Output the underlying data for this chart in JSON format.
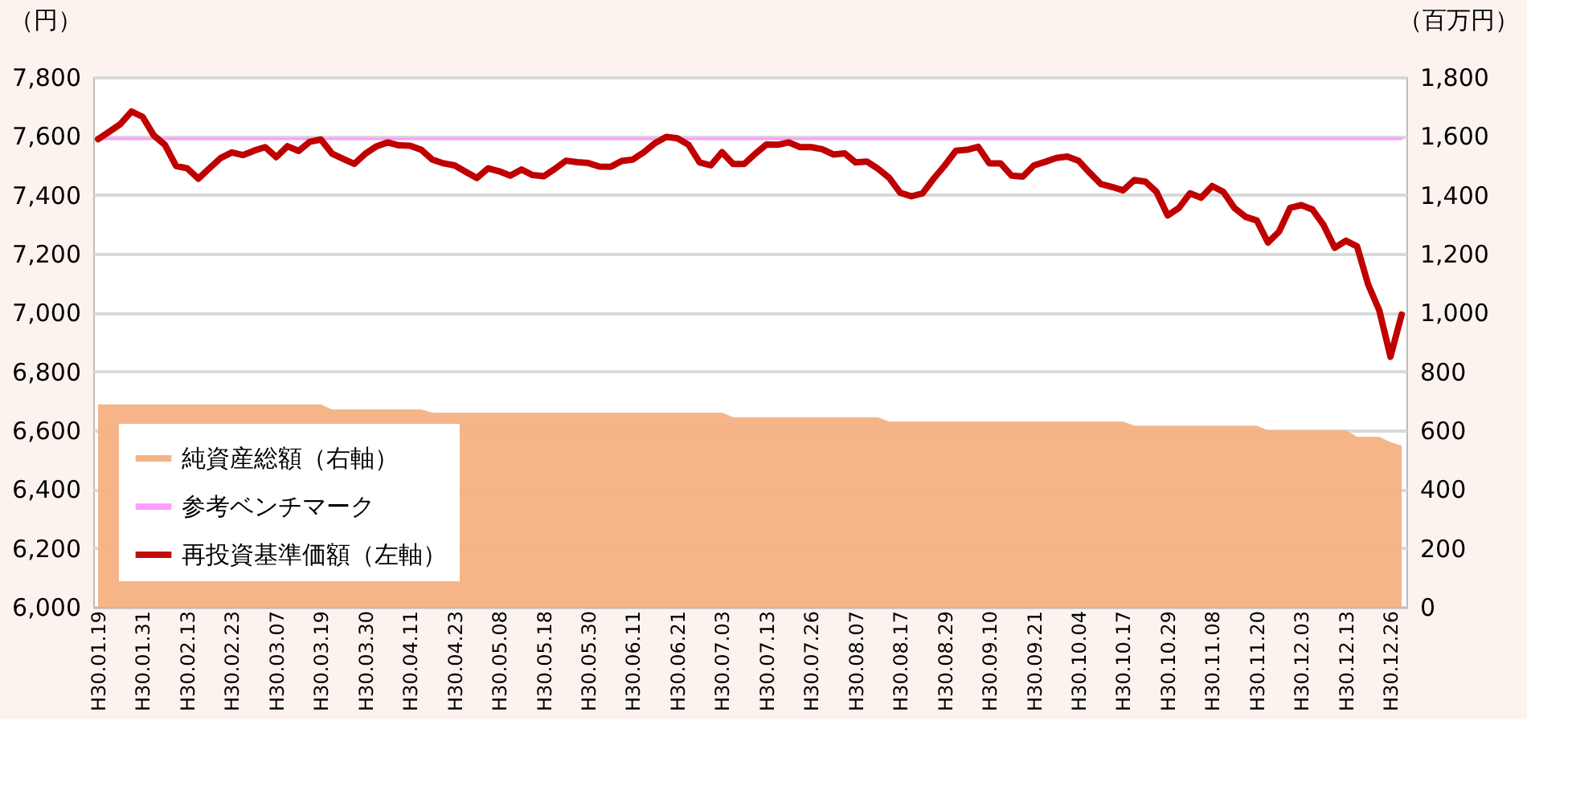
{
  "chart_data": {
    "type": "line",
    "ylabel": "（円）",
    "y2label": "（百万円）",
    "categories": [
      "H30.01.19",
      null,
      null,
      null,
      "H30.01.31",
      null,
      null,
      null,
      "H30.02.13",
      null,
      null,
      null,
      "H30.02.23",
      null,
      null,
      null,
      "H30.03.07",
      null,
      null,
      null,
      "H30.03.19",
      null,
      null,
      null,
      "H30.03.30",
      null,
      null,
      null,
      "H30.04.11",
      null,
      null,
      null,
      "H30.04.23",
      null,
      null,
      null,
      "H30.05.08",
      null,
      null,
      null,
      "H30.05.18",
      null,
      null,
      null,
      "H30.05.30",
      null,
      null,
      null,
      "H30.06.11",
      null,
      null,
      null,
      "H30.06.21",
      null,
      null,
      null,
      "H30.07.03",
      null,
      null,
      null,
      "H30.07.13",
      null,
      null,
      null,
      "H30.07.26",
      null,
      null,
      null,
      "H30.08.07",
      null,
      null,
      null,
      "H30.08.17",
      null,
      null,
      null,
      "H30.08.29",
      null,
      null,
      null,
      "H30.09.10",
      null,
      null,
      null,
      "H30.09.21",
      null,
      null,
      null,
      "H30.10.04",
      null,
      null,
      null,
      "H30.10.17",
      null,
      null,
      null,
      "H30.10.29",
      null,
      null,
      null,
      "H30.11.08",
      null,
      null,
      null,
      "H30.11.20",
      null,
      null,
      null,
      "H30.12.03",
      null,
      null,
      null,
      "H30.12.13",
      null,
      null,
      null,
      "H30.12.26",
      null
    ],
    "series": [
      {
        "name": "純資産総額（右軸）",
        "type": "area",
        "axis": "y2",
        "color": "#f4b183",
        "values": [
          688,
          688,
          688,
          688,
          688,
          688,
          688,
          688,
          688,
          688,
          688,
          688,
          688,
          688,
          688,
          688,
          688,
          688,
          688,
          688,
          688,
          671,
          671,
          671,
          671,
          671,
          671,
          671,
          671,
          671,
          660,
          660,
          660,
          660,
          660,
          660,
          660,
          660,
          660,
          660,
          660,
          660,
          660,
          660,
          660,
          660,
          660,
          660,
          660,
          660,
          660,
          660,
          660,
          660,
          660,
          660,
          660,
          644,
          644,
          644,
          644,
          644,
          644,
          644,
          644,
          644,
          644,
          644,
          644,
          644,
          644,
          630,
          630,
          630,
          630,
          630,
          630,
          630,
          630,
          630,
          630,
          630,
          630,
          630,
          630,
          630,
          630,
          630,
          630,
          630,
          630,
          630,
          630,
          616,
          616,
          616,
          616,
          616,
          616,
          616,
          616,
          616,
          616,
          616,
          616,
          600,
          600,
          600,
          600,
          600,
          600,
          600,
          600,
          578,
          578,
          578,
          560,
          548
        ]
      },
      {
        "name": "参考ベンチマーク",
        "type": "line",
        "color": "#ff99ff",
        "values": [
          7590,
          7590,
          7590,
          7590,
          7590,
          7590,
          7590,
          7590,
          7590,
          7590,
          7590,
          7590,
          7590,
          7590,
          7590,
          7590,
          7590,
          7590,
          7590,
          7590,
          7590,
          7590,
          7590,
          7590,
          7590,
          7590,
          7590,
          7590,
          7590,
          7590,
          7590,
          7590,
          7590,
          7590,
          7590,
          7590,
          7590,
          7590,
          7590,
          7590,
          7590,
          7590,
          7590,
          7590,
          7590,
          7590,
          7590,
          7590,
          7590,
          7590,
          7590,
          7590,
          7590,
          7590,
          7590,
          7590,
          7590,
          7590,
          7590,
          7590,
          7590,
          7590,
          7590,
          7590,
          7590,
          7590,
          7590,
          7590,
          7590,
          7590,
          7590,
          7590,
          7590,
          7590,
          7590,
          7590,
          7590,
          7590,
          7590,
          7590,
          7590,
          7590,
          7590,
          7590,
          7590,
          7590,
          7590,
          7590,
          7590,
          7590,
          7590,
          7590,
          7590,
          7590,
          7590,
          7590,
          7590,
          7590,
          7590,
          7590,
          7590,
          7590,
          7590,
          7590,
          7590,
          7590,
          7590,
          7590,
          7590,
          7590,
          7590,
          7590,
          7590,
          7590,
          7590,
          7590,
          7590,
          7590
        ]
      },
      {
        "name": "再投資基準価額（左軸）",
        "type": "line",
        "color": "#c00000",
        "values": [
          7589,
          7614,
          7640,
          7683,
          7665,
          7602,
          7570,
          7498,
          7490,
          7455,
          7490,
          7525,
          7544,
          7535,
          7550,
          7562,
          7528,
          7565,
          7549,
          7580,
          7588,
          7540,
          7522,
          7505,
          7540,
          7565,
          7578,
          7568,
          7567,
          7553,
          7520,
          7507,
          7500,
          7478,
          7457,
          7490,
          7480,
          7465,
          7486,
          7467,
          7463,
          7488,
          7516,
          7511,
          7508,
          7496,
          7495,
          7515,
          7520,
          7545,
          7576,
          7597,
          7592,
          7570,
          7510,
          7500,
          7545,
          7505,
          7505,
          7540,
          7571,
          7570,
          7578,
          7562,
          7562,
          7555,
          7537,
          7541,
          7510,
          7513,
          7489,
          7458,
          7407,
          7395,
          7405,
          7455,
          7500,
          7550,
          7553,
          7563,
          7507,
          7507,
          7465,
          7462,
          7500,
          7512,
          7525,
          7530,
          7516,
          7475,
          7437,
          7427,
          7415,
          7450,
          7445,
          7410,
          7330,
          7355,
          7405,
          7390,
          7430,
          7410,
          7355,
          7325,
          7313,
          7238,
          7275,
          7356,
          7365,
          7350,
          7297,
          7220,
          7244,
          7225,
          7095,
          7007,
          6850,
          6993
        ]
      }
    ],
    "ylim": [
      6000,
      7800
    ],
    "yticks": [
      {
        "value": 6000,
        "label": "6,000"
      },
      {
        "value": 6200,
        "label": "6,200"
      },
      {
        "value": 6400,
        "label": "6,400"
      },
      {
        "value": 6600,
        "label": "6,600"
      },
      {
        "value": 6800,
        "label": "6,800"
      },
      {
        "value": 7000,
        "label": "7,000"
      },
      {
        "value": 7200,
        "label": "7,200"
      },
      {
        "value": 7400,
        "label": "7,400"
      },
      {
        "value": 7600,
        "label": "7,600"
      },
      {
        "value": 7800,
        "label": "7,800"
      }
    ],
    "y2lim": [
      0,
      1800
    ],
    "y2ticks": [
      0,
      200,
      400,
      600,
      800,
      {
        "value": 1000,
        "label": "1,000"
      },
      {
        "value": 1200,
        "label": "1,200"
      },
      {
        "value": 1400,
        "label": "1,400"
      },
      {
        "value": 1600,
        "label": "1,600"
      },
      {
        "value": 1800,
        "label": "1,800"
      }
    ],
    "grid": "y",
    "legend": "bottom left"
  }
}
